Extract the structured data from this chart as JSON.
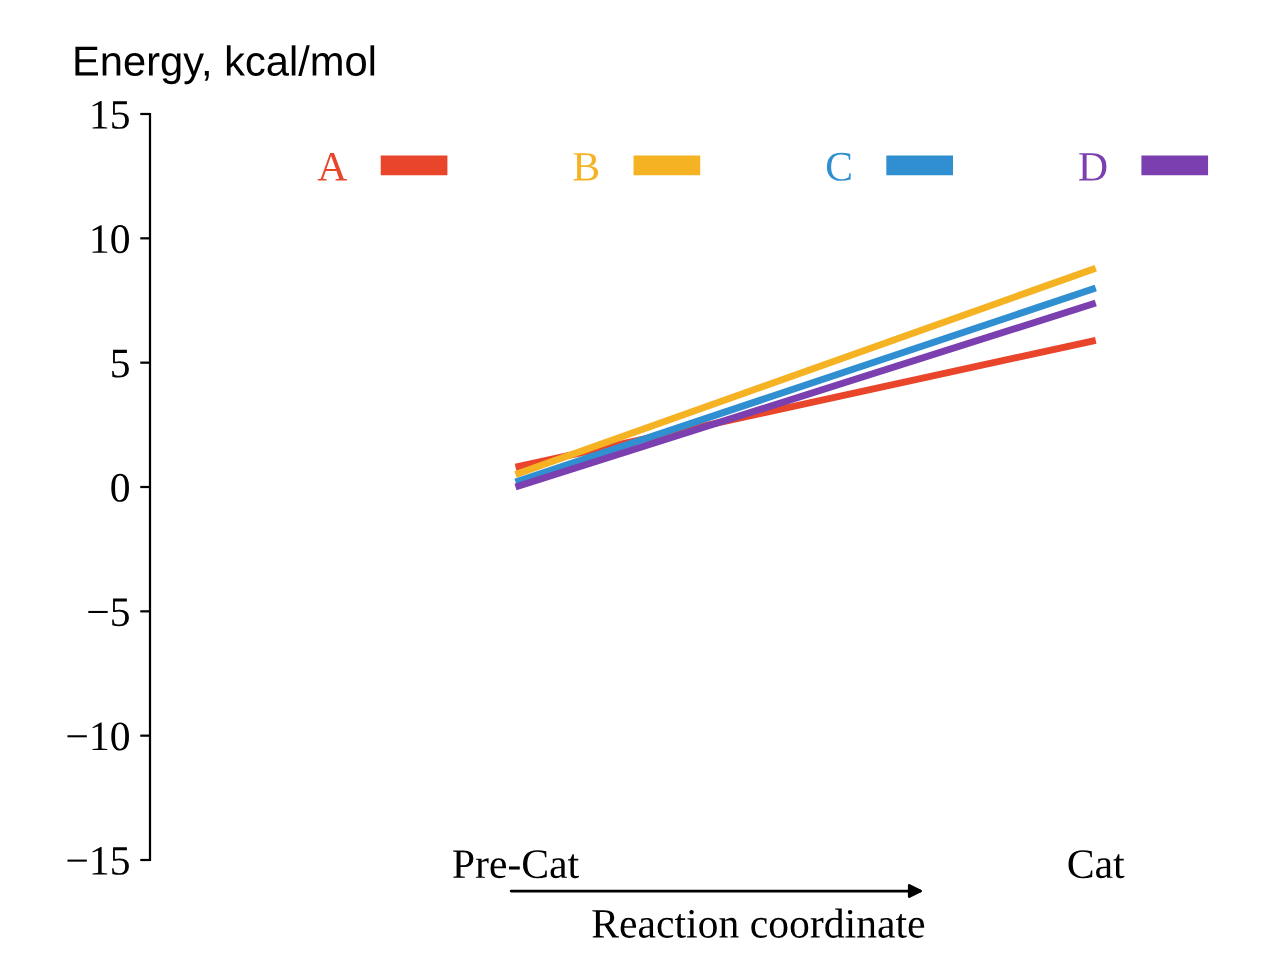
{
  "chart_data": {
    "type": "line",
    "ylabel": "Energy, kcal/mol",
    "xlabel": "Reaction coordinate",
    "categories": [
      "Pre-Cat",
      "Cat"
    ],
    "series": [
      {
        "name": "A",
        "color": "#e8452a",
        "values": [
          0.8,
          5.9
        ]
      },
      {
        "name": "B",
        "color": "#f5b324",
        "values": [
          0.5,
          8.8
        ]
      },
      {
        "name": "C",
        "color": "#2f8fd0",
        "values": [
          0.2,
          8.0
        ]
      },
      {
        "name": "D",
        "color": "#7b3fb0",
        "values": [
          0.0,
          7.4
        ]
      }
    ],
    "ylim": [
      -15,
      15
    ],
    "yticks": [
      {
        "value": -15,
        "label": "−15"
      },
      {
        "value": -10,
        "label": "−10"
      },
      {
        "value": -5,
        "label": "−5"
      },
      0,
      5,
      10,
      15
    ],
    "legend": "top",
    "grid": false
  }
}
